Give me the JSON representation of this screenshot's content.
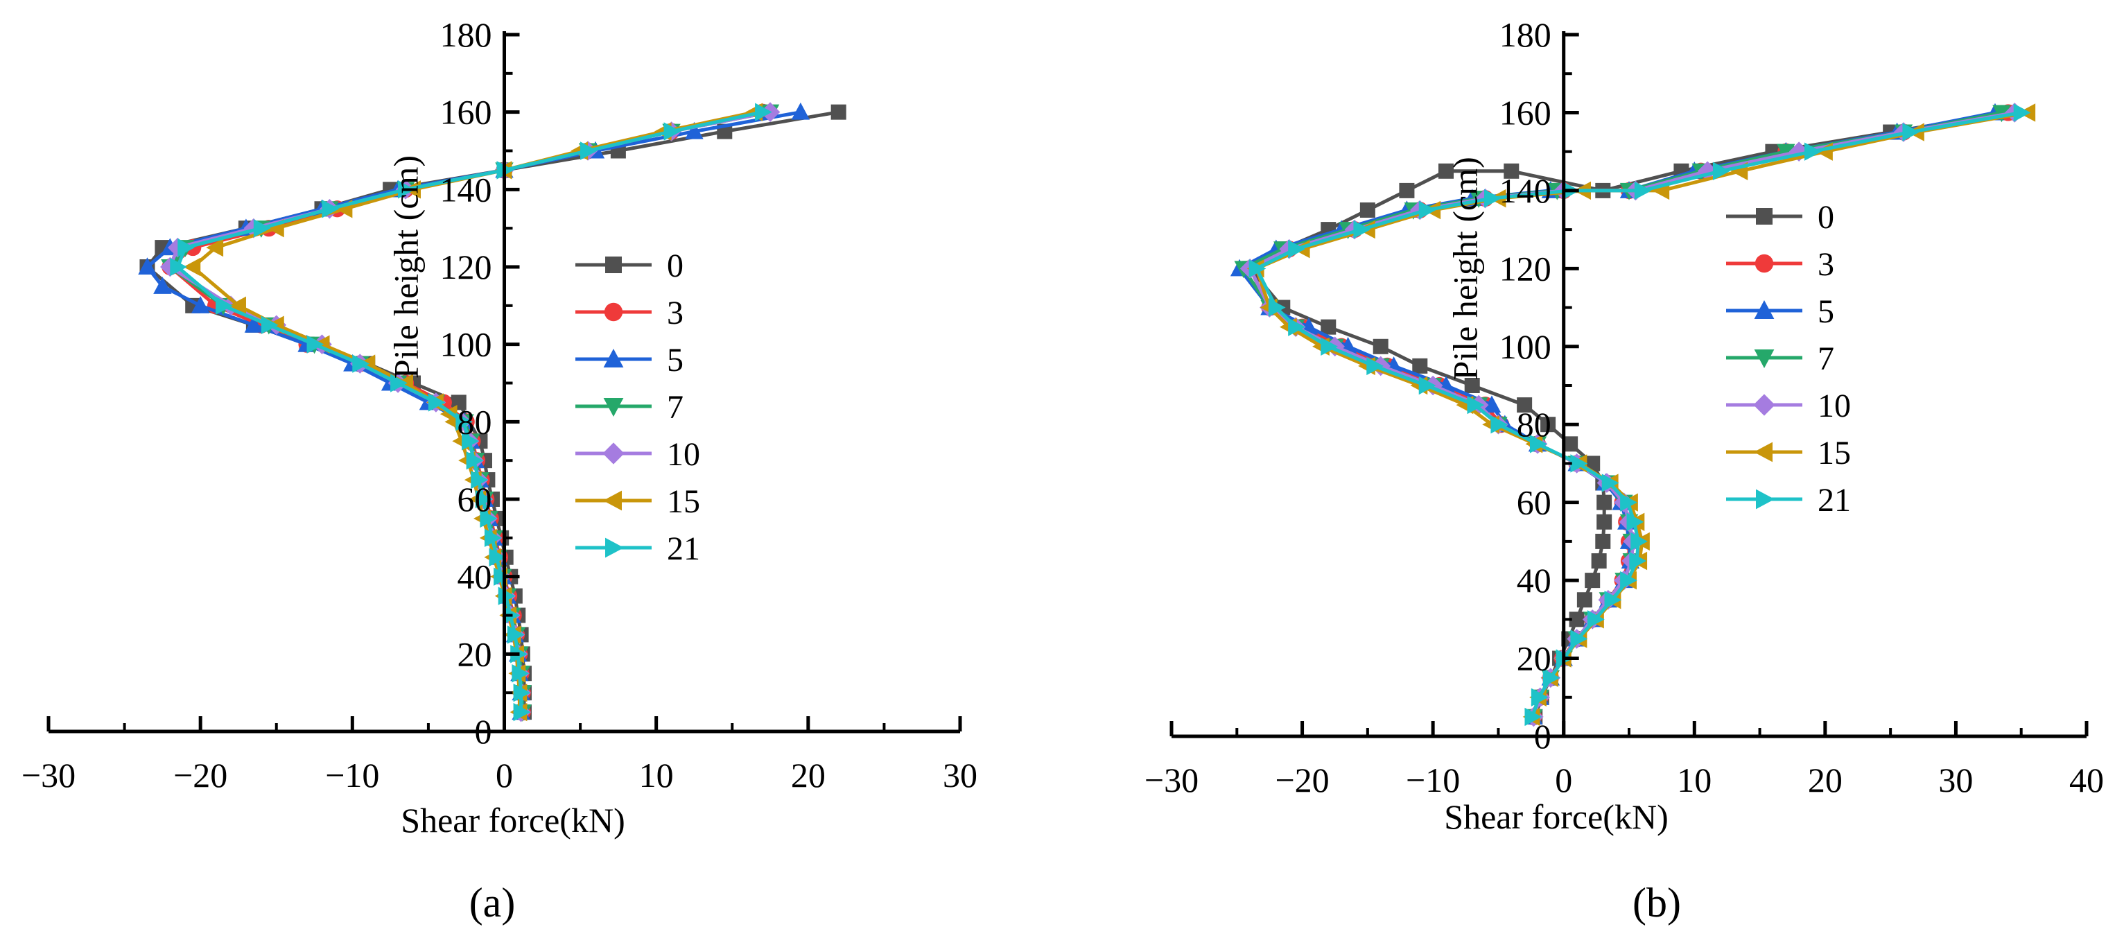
{
  "figure": {
    "panel_labels": [
      "(a)",
      "(b)"
    ]
  },
  "colors": {
    "0": "#505050",
    "3": "#ef3a3a",
    "5": "#1f62d8",
    "7": "#25a86a",
    "10": "#a57ce0",
    "15": "#c9960a",
    "21": "#1ec2c8"
  },
  "chart_data": [
    {
      "type": "line",
      "panel": "(a)",
      "xlabel": "Shear force(kN)",
      "ylabel": "Pile height (cm)",
      "xlim": [
        -30,
        30
      ],
      "ylim": [
        0,
        180
      ],
      "xticks": [
        -30,
        -20,
        -10,
        0,
        10,
        20,
        30
      ],
      "yticks": [
        0,
        20,
        40,
        60,
        80,
        100,
        120,
        140,
        160,
        180
      ],
      "grid": false,
      "legend_position": "center-right",
      "series": [
        {
          "name": "0",
          "marker": "square",
          "color": "#505050",
          "x": [
            1.3,
            1.3,
            1.3,
            1.2,
            1.1,
            0.9,
            0.7,
            0.4,
            0.1,
            -0.2,
            -0.5,
            -0.8,
            -1.1,
            -1.3,
            -1.6,
            -3,
            -6,
            -9,
            -13,
            -16.5,
            -20.5,
            -23.5,
            -22.5,
            -17,
            -12,
            -7.5,
            0,
            7.5,
            14.5,
            22
          ],
          "y": [
            5,
            10,
            15,
            20,
            25,
            30,
            35,
            40,
            45,
            50,
            55,
            60,
            65,
            70,
            75,
            85,
            90,
            95,
            100,
            105,
            110,
            120,
            125,
            130,
            135,
            140,
            145,
            150,
            155,
            160
          ]
        },
        {
          "name": "3",
          "marker": "circle",
          "color": "#ef3a3a",
          "x": [
            1.2,
            1.2,
            1.1,
            1,
            0.8,
            0.6,
            0.3,
            0,
            -0.3,
            -0.6,
            -0.9,
            -1.2,
            -1.5,
            -1.8,
            -2.1,
            -2.5,
            -4,
            -6.5,
            -9.5,
            -13,
            -16,
            -19,
            -22,
            -20.5,
            -15.5,
            -11,
            -6.5,
            0,
            5.5,
            11,
            17
          ],
          "y": [
            5,
            10,
            15,
            20,
            25,
            30,
            35,
            40,
            45,
            50,
            55,
            60,
            65,
            70,
            75,
            80,
            85,
            90,
            95,
            100,
            105,
            110,
            120,
            125,
            130,
            135,
            140,
            145,
            150,
            155,
            160
          ]
        },
        {
          "name": "5",
          "marker": "triangle-up",
          "color": "#1f62d8",
          "x": [
            1.1,
            1.1,
            1,
            0.9,
            0.7,
            0.5,
            0.2,
            -0.1,
            -0.4,
            -0.7,
            -1,
            -1.3,
            -1.6,
            -1.9,
            -2.2,
            -2.6,
            -5,
            -7.5,
            -10,
            -13,
            -16.5,
            -20,
            -22.5,
            -23.5,
            -22,
            -17,
            -12,
            -7,
            0,
            6,
            12.5,
            19.5
          ],
          "y": [
            5,
            10,
            15,
            20,
            25,
            30,
            35,
            40,
            45,
            50,
            55,
            60,
            65,
            70,
            75,
            80,
            85,
            90,
            95,
            100,
            105,
            110,
            115,
            120,
            125,
            130,
            135,
            140,
            145,
            150,
            155,
            160
          ]
        },
        {
          "name": "7",
          "marker": "triangle-down",
          "color": "#25a86a",
          "x": [
            1.2,
            1.2,
            1.1,
            1,
            0.8,
            0.5,
            0.2,
            -0.1,
            -0.4,
            -0.7,
            -1,
            -1.3,
            -1.6,
            -1.9,
            -2.2,
            -2.6,
            -4.5,
            -7,
            -9.5,
            -12.5,
            -15.5,
            -18.5,
            -22,
            -21,
            -16,
            -11.5,
            -6.5,
            0,
            5.5,
            11,
            17.5
          ],
          "y": [
            5,
            10,
            15,
            20,
            25,
            30,
            35,
            40,
            45,
            50,
            55,
            60,
            65,
            70,
            75,
            80,
            85,
            90,
            95,
            100,
            105,
            110,
            120,
            125,
            130,
            135,
            140,
            145,
            150,
            155,
            160
          ]
        },
        {
          "name": "10",
          "marker": "diamond",
          "color": "#a57ce0",
          "x": [
            1.1,
            1.1,
            1,
            0.9,
            0.7,
            0.4,
            0.1,
            -0.2,
            -0.5,
            -0.8,
            -1.1,
            -1.4,
            -1.7,
            -2,
            -2.3,
            -2.8,
            -4.5,
            -7,
            -9.5,
            -12,
            -15,
            -18,
            -22,
            -21.5,
            -16.5,
            -11.5,
            -6.5,
            0,
            5.5,
            11,
            17.5
          ],
          "y": [
            5,
            10,
            15,
            20,
            25,
            30,
            35,
            40,
            45,
            50,
            55,
            60,
            65,
            70,
            75,
            80,
            85,
            90,
            95,
            100,
            105,
            110,
            120,
            125,
            130,
            135,
            140,
            145,
            150,
            155,
            160
          ]
        },
        {
          "name": "15",
          "marker": "triangle-left",
          "color": "#c9960a",
          "x": [
            1,
            1,
            0.9,
            0.8,
            0.6,
            0.3,
            0,
            -0.3,
            -0.7,
            -1,
            -1.4,
            -1.7,
            -2,
            -2.4,
            -2.8,
            -3.3,
            -3.6,
            -4.5,
            -6.5,
            -9,
            -12,
            -15,
            -17.5,
            -20.5,
            -19,
            -15,
            -10.5,
            -6,
            0,
            5,
            10.5,
            16.5
          ],
          "y": [
            5,
            10,
            15,
            20,
            25,
            30,
            35,
            40,
            45,
            50,
            55,
            60,
            65,
            70,
            75,
            80,
            82,
            85,
            90,
            95,
            100,
            105,
            110,
            120,
            125,
            130,
            135,
            140,
            145,
            150,
            155,
            160
          ]
        },
        {
          "name": "21",
          "marker": "triangle-right",
          "color": "#1ec2c8",
          "x": [
            1.1,
            1.1,
            1,
            0.9,
            0.7,
            0.4,
            0.1,
            -0.2,
            -0.5,
            -0.8,
            -1.1,
            -1.4,
            -1.7,
            -2,
            -2.3,
            -2.7,
            -4.5,
            -7,
            -9.5,
            -12.5,
            -15.5,
            -18.5,
            -21.5,
            -21,
            -16,
            -11.5,
            -6.5,
            0,
            5.5,
            11,
            17
          ],
          "y": [
            5,
            10,
            15,
            20,
            25,
            30,
            35,
            40,
            45,
            50,
            55,
            60,
            65,
            70,
            75,
            80,
            85,
            90,
            95,
            100,
            105,
            110,
            120,
            125,
            130,
            135,
            140,
            145,
            150,
            155,
            160
          ]
        }
      ]
    },
    {
      "type": "line",
      "panel": "(b)",
      "xlabel": "Shear force(kN)",
      "ylabel": "Pile height (cm)",
      "xlim": [
        -30,
        40
      ],
      "ylim": [
        0,
        180
      ],
      "xticks": [
        -30,
        -20,
        -10,
        0,
        10,
        20,
        30,
        40
      ],
      "yticks": [
        0,
        20,
        40,
        60,
        80,
        100,
        120,
        140,
        160,
        180
      ],
      "grid": false,
      "legend_position": "center-right",
      "series": [
        {
          "name": "0",
          "marker": "square",
          "color": "#505050",
          "x": [
            -2.2,
            -1.7,
            -1,
            -0.3,
            0.4,
            1,
            1.6,
            2.2,
            2.7,
            3,
            3.1,
            3.1,
            3,
            2.2,
            0.5,
            -1.2,
            -3,
            -7,
            -11,
            -14,
            -18,
            -21.5,
            -24,
            -21.5,
            -18,
            -15,
            -12,
            -9,
            -4,
            3,
            9,
            16,
            25,
            34
          ],
          "y": [
            5,
            10,
            15,
            20,
            25,
            30,
            35,
            40,
            45,
            50,
            55,
            60,
            65,
            70,
            75,
            80,
            85,
            90,
            95,
            100,
            105,
            110,
            120,
            125,
            130,
            135,
            140,
            145,
            145,
            140,
            145,
            150,
            155,
            160
          ]
        },
        {
          "name": "3",
          "marker": "circle",
          "color": "#ef3a3a",
          "x": [
            -2.3,
            -1.8,
            -1,
            -0.1,
            1,
            2.2,
            3.4,
            4.5,
            5,
            5,
            4.8,
            4.5,
            3.3,
            1,
            -2,
            -4.8,
            -6,
            -9.5,
            -13.5,
            -17,
            -20,
            -22.5,
            -24,
            -21,
            -16,
            -11,
            -6,
            0,
            5,
            10.5,
            17,
            26,
            34
          ],
          "y": [
            5,
            10,
            15,
            20,
            25,
            30,
            35,
            40,
            45,
            50,
            55,
            60,
            65,
            70,
            75,
            80,
            85,
            90,
            95,
            100,
            105,
            110,
            120,
            125,
            130,
            135,
            138,
            140,
            140,
            145,
            150,
            155,
            160
          ]
        },
        {
          "name": "5",
          "marker": "triangle-up",
          "color": "#1f62d8",
          "x": [
            -2.3,
            -1.8,
            -1,
            0,
            1,
            2.2,
            3.4,
            4.6,
            5.1,
            5,
            4.8,
            4.4,
            3.2,
            1,
            -2,
            -4.5,
            -5.5,
            -9,
            -13,
            -16.5,
            -19.5,
            -22.5,
            -24.8,
            -22,
            -17,
            -12,
            -7,
            -1,
            5,
            10,
            17,
            25.5,
            33
          ],
          "y": [
            5,
            10,
            15,
            20,
            25,
            30,
            35,
            40,
            45,
            50,
            55,
            60,
            65,
            70,
            75,
            80,
            85,
            90,
            95,
            100,
            105,
            110,
            120,
            125,
            130,
            135,
            138,
            140,
            140,
            145,
            150,
            155,
            160
          ]
        },
        {
          "name": "7",
          "marker": "triangle-down",
          "color": "#25a86a",
          "x": [
            -2.3,
            -1.8,
            -1,
            0,
            1,
            2.2,
            3.4,
            4.6,
            5.2,
            5.2,
            5,
            4.6,
            3.3,
            1,
            -2,
            -5,
            -6.5,
            -10,
            -14,
            -17.5,
            -20.5,
            -22.5,
            -24.5,
            -21.5,
            -16.5,
            -11.5,
            -6.5,
            -0.5,
            5,
            10.5,
            17,
            26,
            33.5
          ],
          "y": [
            5,
            10,
            15,
            20,
            25,
            30,
            35,
            40,
            45,
            50,
            55,
            60,
            65,
            70,
            75,
            80,
            85,
            90,
            95,
            100,
            105,
            110,
            120,
            125,
            130,
            135,
            138,
            140,
            140,
            145,
            150,
            155,
            160
          ]
        },
        {
          "name": "10",
          "marker": "diamond",
          "color": "#a57ce0",
          "x": [
            -2.3,
            -1.8,
            -1,
            0,
            1,
            2.2,
            3.4,
            4.6,
            5.2,
            5.3,
            5,
            4.6,
            3.3,
            1,
            -2,
            -5,
            -6.5,
            -10,
            -14,
            -17.5,
            -20.5,
            -22.5,
            -24,
            -21,
            -16,
            -11,
            -6,
            0,
            5.5,
            11,
            18,
            26,
            34.5
          ],
          "y": [
            5,
            10,
            15,
            20,
            25,
            30,
            35,
            40,
            45,
            50,
            55,
            60,
            65,
            70,
            75,
            80,
            85,
            90,
            95,
            100,
            105,
            110,
            120,
            125,
            130,
            135,
            138,
            140,
            140,
            145,
            150,
            155,
            160
          ]
        },
        {
          "name": "15",
          "marker": "triangle-left",
          "color": "#c9960a",
          "x": [
            -2.4,
            -1.9,
            -1,
            0,
            1.2,
            2.5,
            3.8,
            5,
            5.8,
            6,
            5.6,
            5.1,
            3.6,
            1.2,
            -2.2,
            -5.5,
            -7.5,
            -11,
            -15,
            -18.5,
            -21,
            -22.5,
            -23.5,
            -20,
            -15,
            -10,
            -5,
            1.5,
            7.5,
            13.5,
            20,
            27,
            35.5
          ],
          "y": [
            5,
            10,
            15,
            20,
            25,
            30,
            35,
            40,
            45,
            50,
            55,
            60,
            65,
            70,
            75,
            80,
            85,
            90,
            95,
            100,
            105,
            110,
            120,
            125,
            130,
            135,
            138,
            140,
            140,
            145,
            150,
            155,
            160
          ]
        },
        {
          "name": "21",
          "marker": "triangle-right",
          "color": "#1ec2c8",
          "x": [
            -2.4,
            -1.9,
            -1,
            0,
            1.1,
            2.4,
            3.7,
            4.9,
            5.6,
            5.7,
            5.4,
            4.9,
            3.5,
            1.1,
            -2,
            -5,
            -6.8,
            -10.5,
            -14.5,
            -18,
            -20.5,
            -22,
            -23.5,
            -20.5,
            -15.5,
            -10.5,
            -5.5,
            0.5,
            6,
            12,
            19,
            26.5,
            35
          ],
          "y": [
            5,
            10,
            15,
            20,
            25,
            30,
            35,
            40,
            45,
            50,
            55,
            60,
            65,
            70,
            75,
            80,
            85,
            90,
            95,
            100,
            105,
            110,
            120,
            125,
            130,
            135,
            138,
            140,
            140,
            145,
            150,
            155,
            160
          ]
        }
      ]
    }
  ]
}
